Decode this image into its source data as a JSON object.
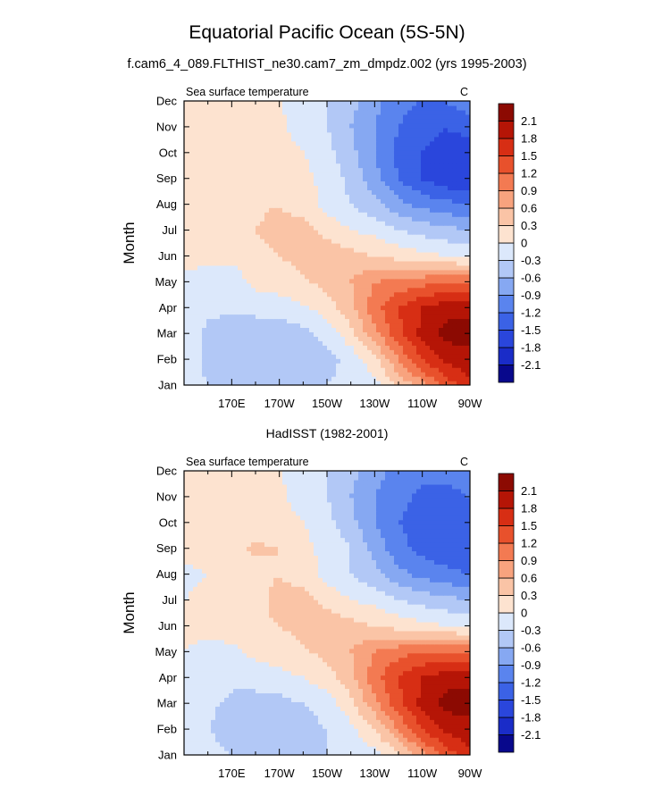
{
  "figure": {
    "title": "Equatorial Pacific Ocean (5S-5N)",
    "subtitle": "f.cam6_4_089.FLTHIST_ne30.cam7_zm_dmpdz.002 (yrs 1995-2003)"
  },
  "colorbar": {
    "levels": [
      -2.1,
      -1.8,
      -1.5,
      -1.2,
      -0.9,
      -0.6,
      -0.3,
      0,
      0.3,
      0.6,
      0.9,
      1.2,
      1.5,
      1.8,
      2.1
    ],
    "labels": [
      "-2.1",
      "-1.8",
      "-1.5",
      "-1.2",
      "-0.9",
      "-0.6",
      "-0.3",
      "0",
      "0.3",
      "0.6",
      "0.9",
      "1.2",
      "1.5",
      "1.8",
      "2.1"
    ],
    "colors": [
      "#08088c",
      "#1a2cc8",
      "#2a46dc",
      "#3b62e6",
      "#5a84ee",
      "#86a8f2",
      "#b2c8f6",
      "#dce8fb",
      "#fde3d0",
      "#fac4a6",
      "#f8a37e",
      "#f37a52",
      "#e8512c",
      "#d72e14",
      "#b51506",
      "#8c0a02"
    ]
  },
  "chart_data": [
    {
      "type": "heatmap",
      "title": "",
      "left_title": "Sea surface temperature",
      "units": "C",
      "xlabel": "",
      "ylabel": "Month",
      "x_ticks": [
        "170E",
        "170W",
        "150W",
        "130W",
        "110W",
        "90W"
      ],
      "x_tick_values": [
        170,
        190,
        210,
        230,
        250,
        270
      ],
      "xlim": [
        150,
        270
      ],
      "y_ticks": [
        "Jan",
        "Feb",
        "Mar",
        "Apr",
        "May",
        "Jun",
        "Jul",
        "Aug",
        "Sep",
        "Oct",
        "Nov",
        "Dec"
      ],
      "ylim": [
        1,
        12
      ],
      "longitudes": [
        150,
        160,
        170,
        180,
        190,
        200,
        210,
        220,
        230,
        240,
        250,
        260,
        270
      ],
      "values": [
        [
          0.0,
          -0.3,
          -0.4,
          -0.4,
          -0.4,
          -0.35,
          -0.3,
          -0.2,
          -0.1,
          0.3,
          0.8,
          1.3,
          1.7
        ],
        [
          0.0,
          -0.45,
          -0.5,
          -0.55,
          -0.55,
          -0.5,
          -0.4,
          -0.2,
          0.2,
          0.9,
          1.5,
          1.9,
          2.0
        ],
        [
          0.0,
          -0.4,
          -0.5,
          -0.5,
          -0.5,
          -0.4,
          -0.2,
          0.2,
          0.8,
          1.4,
          1.9,
          2.2,
          2.2
        ],
        [
          0.0,
          -0.2,
          -0.25,
          -0.2,
          -0.15,
          -0.05,
          0.15,
          0.5,
          1.1,
          1.5,
          1.8,
          2.0,
          2.0
        ],
        [
          -0.1,
          -0.2,
          -0.2,
          0.1,
          0.15,
          0.25,
          0.4,
          0.6,
          0.9,
          1.0,
          1.1,
          1.2,
          1.2
        ],
        [
          0.1,
          0.15,
          0.1,
          0.2,
          0.3,
          0.4,
          0.5,
          0.4,
          0.3,
          0.2,
          0.1,
          0.0,
          -0.1
        ],
        [
          0.2,
          0.15,
          0.2,
          0.3,
          0.4,
          0.45,
          0.2,
          0.0,
          -0.1,
          -0.3,
          -0.4,
          -0.5,
          -0.6
        ],
        [
          0.15,
          0.2,
          0.2,
          0.25,
          0.3,
          0.15,
          -0.1,
          -0.3,
          -0.5,
          -0.8,
          -1.0,
          -1.1,
          -1.2
        ],
        [
          0.1,
          0.2,
          0.2,
          0.2,
          0.15,
          0.1,
          -0.1,
          -0.4,
          -0.8,
          -1.2,
          -1.5,
          -1.7,
          -1.8
        ],
        [
          0.1,
          0.2,
          0.2,
          0.2,
          0.1,
          0.0,
          -0.2,
          -0.5,
          -0.9,
          -1.3,
          -1.5,
          -1.6,
          -1.7
        ],
        [
          0.2,
          0.2,
          0.2,
          0.15,
          0.05,
          -0.1,
          -0.3,
          -0.6,
          -0.9,
          -1.2,
          -1.4,
          -1.5,
          -1.4
        ],
        [
          0.2,
          0.2,
          0.15,
          0.1,
          0.0,
          -0.1,
          -0.3,
          -0.5,
          -0.8,
          -1.1,
          -1.2,
          -1.2,
          -1.0
        ]
      ]
    },
    {
      "type": "heatmap",
      "title": "HadISST (1982-2001)",
      "left_title": "Sea surface temperature",
      "units": "C",
      "xlabel": "",
      "ylabel": "Month",
      "x_ticks": [
        "170E",
        "170W",
        "150W",
        "130W",
        "110W",
        "90W"
      ],
      "x_tick_values": [
        170,
        190,
        210,
        230,
        250,
        270
      ],
      "xlim": [
        150,
        270
      ],
      "y_ticks": [
        "Jan",
        "Feb",
        "Mar",
        "Apr",
        "May",
        "Jun",
        "Jul",
        "Aug",
        "Sep",
        "Oct",
        "Nov",
        "Dec"
      ],
      "ylim": [
        1,
        12
      ],
      "longitudes": [
        150,
        160,
        170,
        180,
        190,
        200,
        210,
        220,
        230,
        240,
        250,
        260,
        270
      ],
      "values": [
        [
          0.0,
          -0.1,
          -0.3,
          -0.4,
          -0.4,
          -0.35,
          -0.3,
          -0.2,
          -0.1,
          0.2,
          0.8,
          1.3,
          1.7
        ],
        [
          0.0,
          -0.3,
          -0.5,
          -0.5,
          -0.5,
          -0.45,
          -0.3,
          -0.1,
          0.3,
          0.9,
          1.5,
          1.9,
          2.0
        ],
        [
          0.0,
          -0.2,
          -0.4,
          -0.4,
          -0.4,
          -0.3,
          -0.15,
          0.2,
          0.8,
          1.4,
          1.9,
          2.2,
          2.2
        ],
        [
          0.0,
          -0.1,
          -0.2,
          -0.2,
          -0.1,
          0.0,
          0.15,
          0.5,
          1.1,
          1.5,
          1.8,
          2.0,
          2.0
        ],
        [
          0.0,
          -0.1,
          -0.1,
          0.1,
          0.15,
          0.25,
          0.4,
          0.6,
          0.9,
          1.1,
          1.2,
          1.2,
          1.2
        ],
        [
          0.1,
          0.1,
          0.2,
          0.25,
          0.3,
          0.4,
          0.5,
          0.4,
          0.3,
          0.2,
          0.1,
          0.0,
          -0.1
        ],
        [
          0.0,
          0.1,
          0.2,
          0.2,
          0.4,
          0.45,
          0.2,
          0.0,
          -0.1,
          -0.3,
          -0.4,
          -0.5,
          -0.6
        ],
        [
          -0.1,
          0.0,
          0.2,
          0.2,
          0.3,
          0.15,
          -0.1,
          -0.3,
          -0.5,
          -0.8,
          -1.0,
          -1.1,
          -1.2
        ],
        [
          0.1,
          0.2,
          0.2,
          0.35,
          0.3,
          0.1,
          -0.1,
          -0.3,
          -0.7,
          -1.1,
          -1.3,
          -1.4,
          -1.4
        ],
        [
          0.1,
          0.2,
          0.2,
          0.2,
          0.1,
          0.0,
          -0.2,
          -0.5,
          -0.9,
          -1.2,
          -1.3,
          -1.4,
          -1.4
        ],
        [
          0.2,
          0.2,
          0.2,
          0.15,
          0.05,
          -0.1,
          -0.3,
          -0.6,
          -0.9,
          -1.1,
          -1.3,
          -1.3,
          -1.2
        ],
        [
          0.2,
          0.2,
          0.15,
          0.1,
          0.0,
          -0.1,
          -0.3,
          -0.5,
          -0.8,
          -1.0,
          -1.1,
          -1.1,
          -1.0
        ]
      ]
    }
  ]
}
